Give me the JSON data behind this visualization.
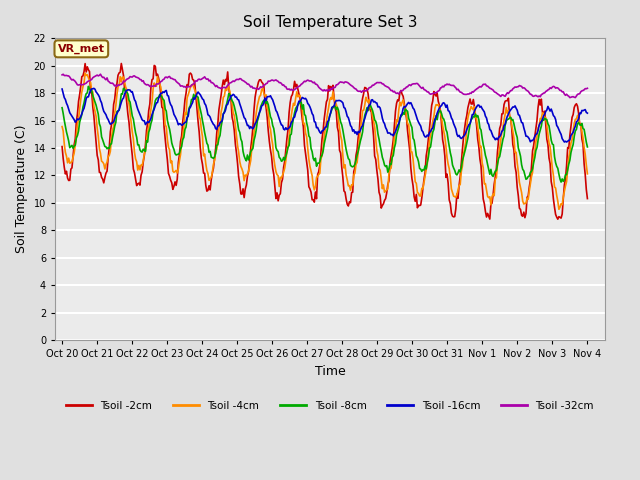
{
  "title": "Soil Temperature Set 3",
  "xlabel": "Time",
  "ylabel": "Soil Temperature (C)",
  "ylim": [
    0,
    22
  ],
  "yticks": [
    0,
    2,
    4,
    6,
    8,
    10,
    12,
    14,
    16,
    18,
    20,
    22
  ],
  "x_labels": [
    "Oct 20",
    "Oct 21",
    "Oct 22",
    "Oct 23",
    "Oct 24",
    "Oct 25",
    "Oct 26",
    "Oct 27",
    "Oct 28",
    "Oct 29",
    "Oct 30",
    "Oct 31",
    "Nov 1",
    "Nov 2",
    "Nov 3",
    "Nov 4"
  ],
  "x_ticks": [
    0,
    1,
    2,
    3,
    4,
    5,
    6,
    7,
    8,
    9,
    10,
    11,
    12,
    13,
    14,
    15
  ],
  "annotation_text": "VR_met",
  "bg_color": "#e0e0e0",
  "plot_bg_color": "#ebebeb",
  "grid_color": "white",
  "series": [
    {
      "label": "Tsoil -2cm",
      "color": "#cc0000",
      "lw": 1.2
    },
    {
      "label": "Tsoil -4cm",
      "color": "#ff8c00",
      "lw": 1.2
    },
    {
      "label": "Tsoil -8cm",
      "color": "#00aa00",
      "lw": 1.2
    },
    {
      "label": "Tsoil -16cm",
      "color": "#0000cc",
      "lw": 1.2
    },
    {
      "label": "Tsoil -32cm",
      "color": "#aa00aa",
      "lw": 1.2
    }
  ],
  "n_points": 480,
  "seed": 42
}
